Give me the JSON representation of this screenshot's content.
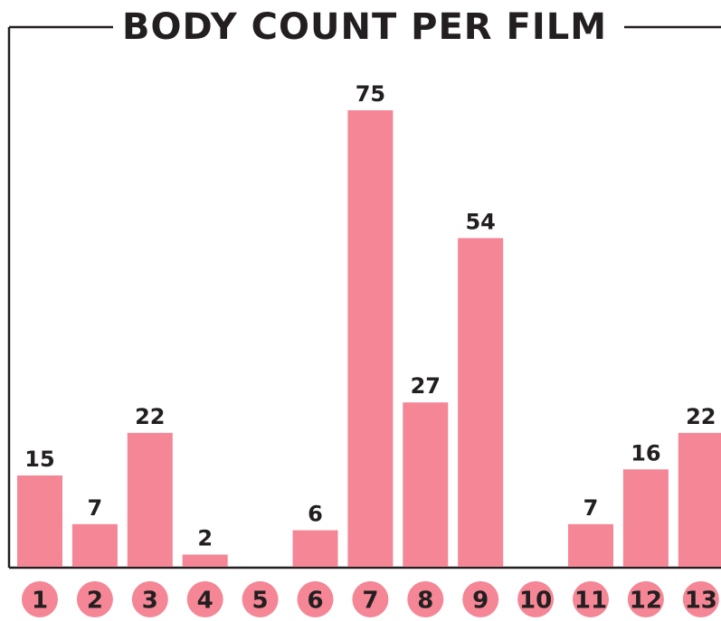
{
  "chart_data": {
    "type": "bar",
    "title": "BODY COUNT PER FILM",
    "categories": [
      "1",
      "2",
      "3",
      "4",
      "5",
      "6",
      "7",
      "8",
      "9",
      "10",
      "11",
      "12",
      "13"
    ],
    "values": [
      15,
      7,
      22,
      2,
      null,
      6,
      75,
      27,
      54,
      null,
      7,
      16,
      22
    ],
    "color": "#f48696",
    "ylim": [
      0,
      75
    ],
    "grid": false
  }
}
